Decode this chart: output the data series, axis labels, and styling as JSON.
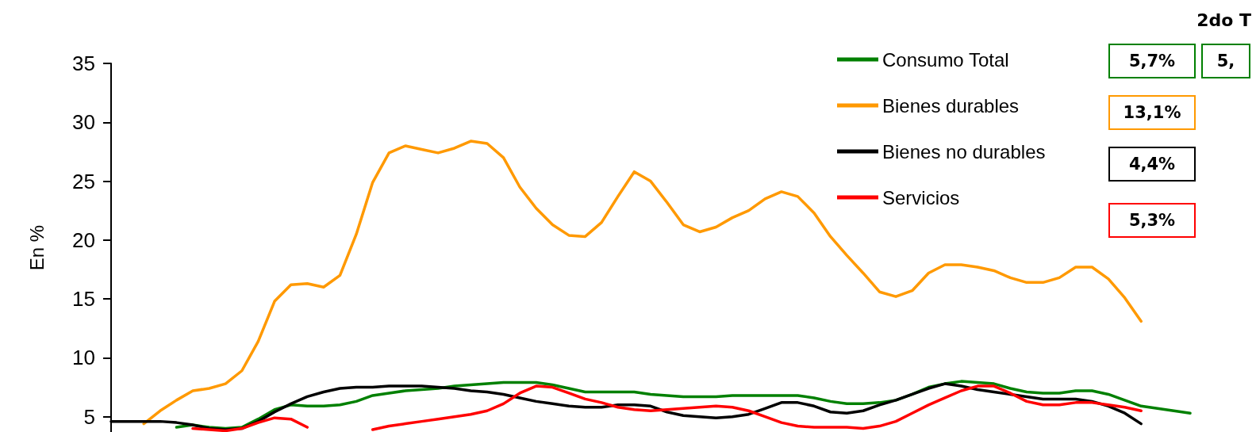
{
  "chart_data": {
    "type": "line",
    "ylabel": "En %",
    "legend": "top right",
    "tick_labels": "y",
    "grid": false,
    "marker": "none",
    "line_style": "solid",
    "categories": [
      null,
      null,
      null,
      null,
      null,
      null,
      null,
      null,
      null,
      null,
      null,
      null,
      null,
      null,
      null,
      null,
      null,
      null,
      null,
      null,
      null,
      null,
      null,
      null,
      null,
      null,
      null,
      null,
      null,
      null,
      null,
      null,
      null,
      null,
      null,
      null,
      null,
      null,
      null,
      null,
      null,
      null,
      null,
      null,
      null,
      null,
      null,
      null,
      null,
      null,
      null,
      null,
      null,
      null,
      null,
      null,
      null,
      null,
      null,
      null,
      null,
      null,
      null,
      null,
      null,
      null,
      null
    ],
    "ylim": [
      3.7,
      35
    ],
    "yticks": [
      5,
      10,
      15,
      20,
      25,
      30,
      35
    ],
    "series": [
      {
        "name": "Consumo Total",
        "color": "#008000",
        "values": [
          null,
          null,
          null,
          null,
          4.1,
          4.3,
          4.1,
          4.0,
          4.1,
          4.8,
          5.6,
          6.0,
          5.9,
          5.9,
          6.0,
          6.3,
          6.8,
          7.0,
          7.2,
          7.3,
          7.4,
          7.6,
          7.7,
          7.8,
          7.9,
          7.9,
          7.9,
          7.7,
          7.4,
          7.1,
          7.1,
          7.1,
          7.1,
          6.9,
          6.8,
          6.7,
          6.7,
          6.7,
          6.8,
          6.8,
          6.8,
          6.8,
          6.8,
          6.6,
          6.3,
          6.1,
          6.1,
          6.2,
          6.4,
          6.9,
          7.5,
          7.8,
          8.0,
          7.9,
          7.8,
          7.4,
          7.1,
          7.0,
          7.0,
          7.2,
          7.2,
          6.9,
          6.4,
          5.9,
          5.7,
          5.5,
          5.3
        ]
      },
      {
        "name": "Bienes durables",
        "color": "#ff9900",
        "values": [
          null,
          null,
          4.4,
          5.5,
          6.4,
          7.2,
          7.4,
          7.8,
          8.9,
          11.4,
          14.8,
          16.2,
          16.3,
          16.0,
          17.0,
          20.5,
          24.9,
          27.4,
          28.0,
          27.7,
          27.4,
          27.8,
          28.4,
          28.2,
          27.0,
          24.5,
          22.7,
          21.3,
          20.4,
          20.3,
          21.5,
          23.7,
          25.8,
          25.0,
          23.2,
          21.3,
          20.7,
          21.1,
          21.9,
          22.5,
          23.5,
          24.1,
          23.7,
          22.3,
          20.3,
          18.7,
          17.2,
          15.6,
          15.2,
          15.7,
          17.2,
          17.9,
          17.9,
          17.7,
          17.4,
          16.8,
          16.4,
          16.4,
          16.8,
          17.7,
          17.7,
          16.7,
          15.1,
          13.1,
          null,
          null,
          null
        ]
      },
      {
        "name": "Bienes no durables",
        "color": "#000000",
        "values": [
          4.6,
          4.6,
          4.6,
          4.6,
          4.5,
          4.3,
          4.0,
          3.9,
          4.0,
          4.6,
          5.4,
          6.1,
          6.7,
          7.1,
          7.4,
          7.5,
          7.5,
          7.6,
          7.6,
          7.6,
          7.5,
          7.4,
          7.2,
          7.1,
          6.9,
          6.6,
          6.3,
          6.1,
          5.9,
          5.8,
          5.8,
          6.0,
          6.0,
          5.9,
          5.4,
          5.1,
          5.0,
          4.9,
          5.0,
          5.2,
          5.7,
          6.2,
          6.2,
          5.9,
          5.4,
          5.3,
          5.5,
          6.0,
          6.4,
          6.9,
          7.4,
          7.8,
          7.6,
          7.3,
          7.1,
          6.9,
          6.7,
          6.5,
          6.5,
          6.5,
          6.3,
          5.9,
          5.3,
          4.4,
          null,
          null,
          null
        ]
      },
      {
        "name": "Servicios",
        "color": "#ff0000",
        "values": [
          null,
          null,
          null,
          null,
          null,
          4.0,
          3.9,
          3.8,
          4.0,
          4.5,
          4.9,
          4.8,
          4.1,
          null,
          null,
          null,
          3.9,
          4.2,
          4.4,
          4.6,
          4.8,
          5.0,
          5.2,
          5.5,
          6.1,
          7.0,
          7.6,
          7.5,
          7.0,
          6.5,
          6.2,
          5.8,
          5.6,
          5.5,
          5.6,
          5.7,
          5.8,
          5.9,
          5.8,
          5.5,
          5.0,
          4.5,
          4.2,
          4.1,
          4.1,
          4.1,
          4.0,
          4.2,
          4.6,
          5.3,
          6.0,
          6.6,
          7.2,
          7.6,
          7.6,
          7.0,
          6.3,
          6.0,
          6.0,
          6.2,
          6.2,
          6.0,
          5.8,
          5.5,
          null,
          null,
          null
        ]
      }
    ],
    "annotations": [
      "2do T",
      "5,7%",
      "13,1%",
      "4,4%",
      "5,3%",
      "5,"
    ]
  }
}
